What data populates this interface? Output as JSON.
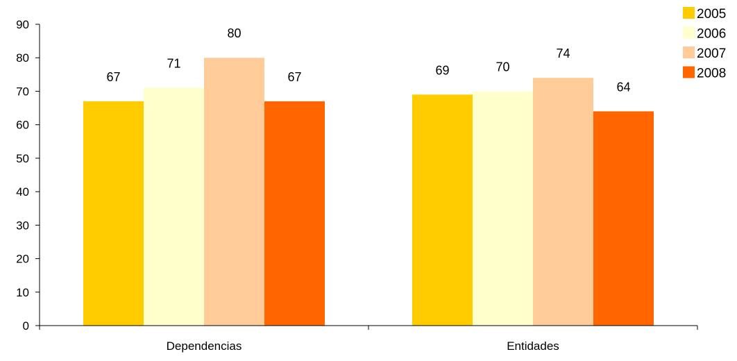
{
  "chart_data": {
    "type": "bar",
    "title": "",
    "xlabel": "",
    "ylabel": "",
    "categories": [
      "Dependencias",
      "Entidades"
    ],
    "series": [
      {
        "name": "2005",
        "values": [
          67,
          69
        ],
        "color": "#FFCC00"
      },
      {
        "name": "2006",
        "values": [
          71,
          70
        ],
        "color": "#FFFFCC"
      },
      {
        "name": "2007",
        "values": [
          80,
          74
        ],
        "color": "#FFCC99"
      },
      {
        "name": "2008",
        "values": [
          67,
          64
        ],
        "color": "#FF6600"
      }
    ],
    "ylim": [
      0,
      90
    ],
    "yticks": [
      0,
      10,
      20,
      30,
      40,
      50,
      60,
      70,
      80,
      90
    ],
    "grid": false,
    "legend": "top-right",
    "data_labels": true
  }
}
